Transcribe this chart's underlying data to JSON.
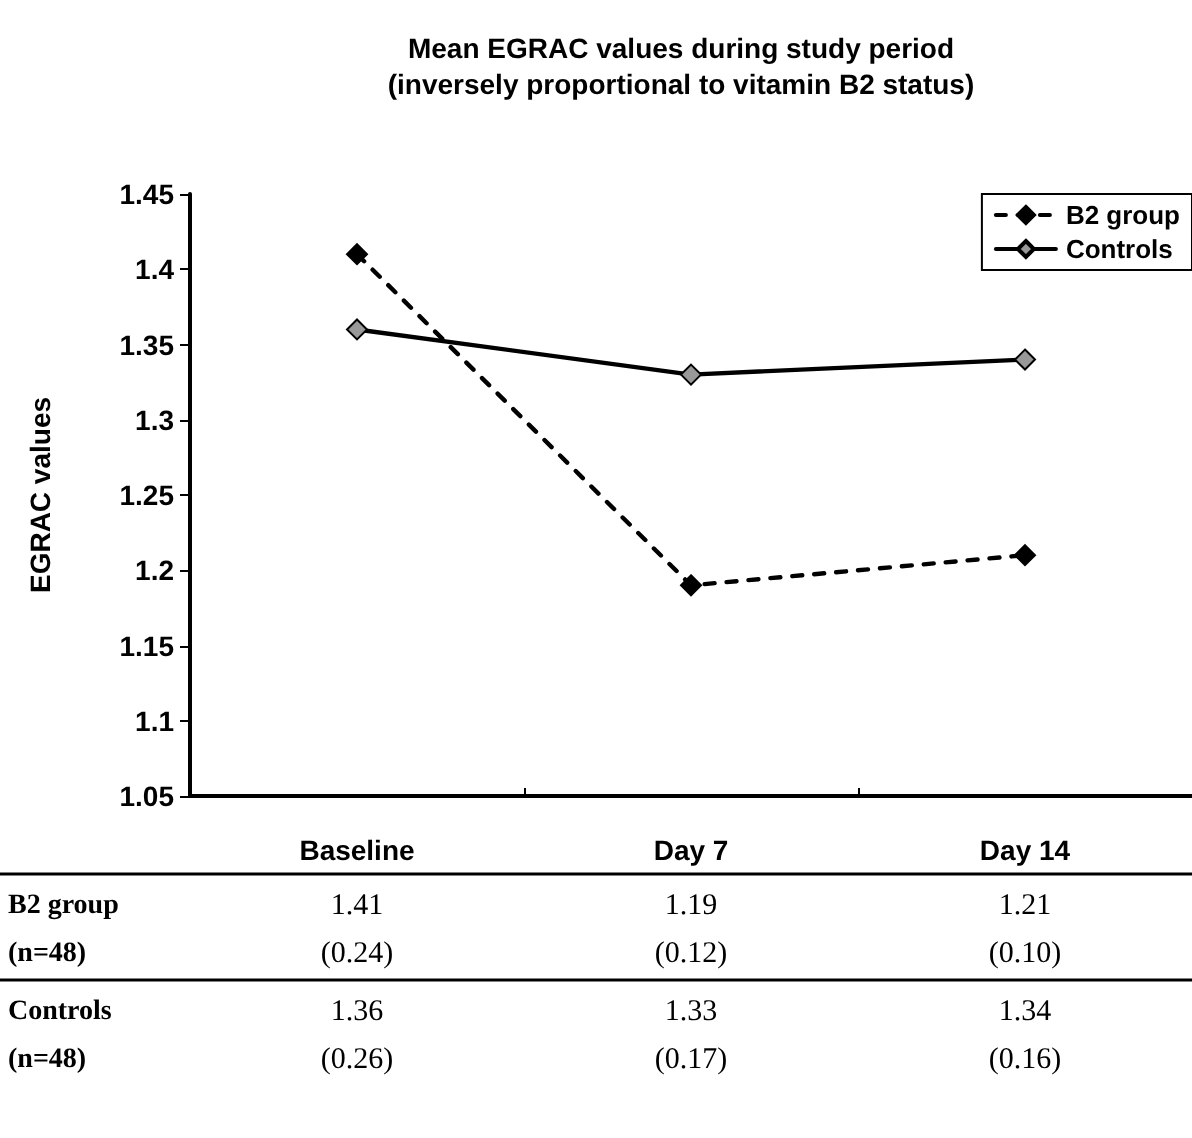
{
  "chart_data": {
    "type": "line",
    "title": "Mean EGRAC values during study period\n(inversely proportional to vitamin B2 status)",
    "ylabel": "EGRAC values",
    "categories": [
      "Baseline",
      "Day 7",
      "Day 14"
    ],
    "series": [
      {
        "name": "B2 group",
        "color": "#000000",
        "values": [
          1.41,
          1.19,
          1.21
        ],
        "line_style": "dashed",
        "marker": "diamond",
        "value_labels": [
          "1.41\n(0.24)",
          "1.19\n(0.12)",
          "1.21\n(0.10)"
        ]
      },
      {
        "name": "Controls",
        "color": "#999999",
        "values": [
          1.36,
          1.33,
          1.34
        ],
        "line_style": "solid",
        "marker": "diamond",
        "value_labels": [
          "1.36\n(0.26)",
          "1.33\n(0.17)",
          "1.34\n(0.16)"
        ]
      }
    ],
    "annotations": [
      "B2 group\n(n=48)",
      "Controls\n(n=48)"
    ],
    "ylim": [
      1.05,
      1.45
    ],
    "yticks": [
      1.05,
      1.1,
      1.15,
      1.2,
      1.25,
      1.3,
      1.35,
      1.4,
      1.45
    ],
    "grid": false,
    "legend": "top right"
  }
}
